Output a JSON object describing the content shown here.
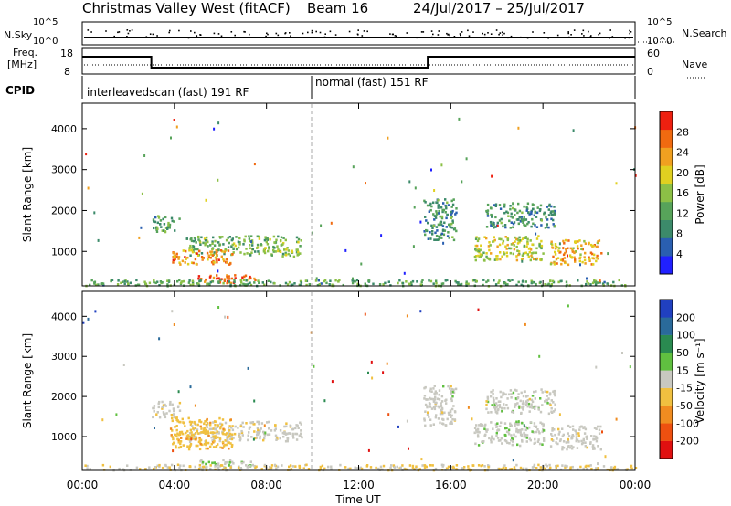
{
  "header": {
    "title": "Christmas Valley West (fitACF)",
    "beam": "Beam 16",
    "date_range": "24/Jul/2017 – 25/Jul/2017"
  },
  "top_panels": {
    "nsky_label": "N.Sky",
    "nsearch_label": "N.Search",
    "noise_ticks": [
      "10^5",
      "10^0"
    ],
    "freq_label_1": "Freq.",
    "freq_label_2": "[MHz]",
    "freq_ticks": [
      "18",
      "8"
    ],
    "nave_label": "Nave",
    "nave_ticks": [
      "60",
      "0"
    ],
    "cpid_label": "CPID",
    "cpid_segments": [
      "interleavedscan (fast) 191 RF",
      "normal (fast) 151 RF"
    ]
  },
  "colors": {
    "power": [
      "#2020ff",
      "#2a5fb0",
      "#3c8a6a",
      "#57a35a",
      "#8cc046",
      "#e0d020",
      "#f0a020",
      "#f06a10",
      "#ee2010"
    ],
    "velocity": [
      "#e01010",
      "#ee5010",
      "#f08c20",
      "#f0c040",
      "#c8c8c0",
      "#60c040",
      "#2a8a50",
      "#2a6a9a",
      "#2040c0"
    ]
  },
  "chart_data": [
    {
      "type": "heatmap",
      "name": "power",
      "title": "",
      "xlabel": "",
      "ylabel": "Slant Range [km]",
      "xlim": [
        "00:00",
        "24:00"
      ],
      "ylim": [
        180,
        4600
      ],
      "yticks": [
        "4000",
        "3000",
        "2000",
        "1000"
      ],
      "colorbar_label": "Power [dB]",
      "colorbar_ticks": [
        "28",
        "24",
        "20",
        "16",
        "12",
        "8",
        "4"
      ],
      "colorbar_range": [
        0,
        32
      ],
      "regions": [
        {
          "t0": 4.5,
          "t1": 9.5,
          "r0": 900,
          "r1": 1400,
          "value": 14
        },
        {
          "t0": 3.8,
          "t1": 6.5,
          "r0": 700,
          "r1": 1050,
          "value": 24
        },
        {
          "t0": 5.0,
          "t1": 7.5,
          "r0": 250,
          "r1": 450,
          "value": 26
        },
        {
          "t0": 0.0,
          "t1": 24.0,
          "r0": 180,
          "r1": 330,
          "value": 12
        },
        {
          "t0": 3.0,
          "t1": 4.2,
          "r0": 1500,
          "r1": 1900,
          "value": 12
        },
        {
          "t0": 14.8,
          "t1": 16.2,
          "r0": 1300,
          "r1": 2300,
          "value": 10
        },
        {
          "t0": 17.0,
          "t1": 20.0,
          "r0": 800,
          "r1": 1400,
          "value": 18
        },
        {
          "t0": 20.3,
          "t1": 22.5,
          "r0": 700,
          "r1": 1300,
          "value": 22
        },
        {
          "t0": 17.5,
          "t1": 20.5,
          "r0": 1600,
          "r1": 2200,
          "value": 10
        }
      ]
    },
    {
      "type": "heatmap",
      "name": "velocity",
      "title": "",
      "xlabel": "Time UT",
      "ylabel": "Slant Range [km]",
      "xlim": [
        "00:00",
        "24:00"
      ],
      "xticks": [
        "00:00",
        "04:00",
        "08:00",
        "12:00",
        "16:00",
        "20:00",
        "00:00"
      ],
      "ylim": [
        180,
        4600
      ],
      "yticks": [
        "4000",
        "3000",
        "2000",
        "1000"
      ],
      "colorbar_label": "Velocity [m s⁻¹]",
      "colorbar_ticks": [
        "200",
        "100",
        "50",
        "15",
        "-15",
        "-50",
        "-100",
        "-200"
      ],
      "colorbar_range": [
        -250,
        250
      ],
      "regions": [
        {
          "t0": 4.5,
          "t1": 9.5,
          "r0": 900,
          "r1": 1400,
          "value": -10
        },
        {
          "t0": 3.8,
          "t1": 6.5,
          "r0": 700,
          "r1": 1500,
          "value": -60
        },
        {
          "t0": 5.0,
          "t1": 7.5,
          "r0": 250,
          "r1": 450,
          "value": 20
        },
        {
          "t0": 0.0,
          "t1": 24.0,
          "r0": 180,
          "r1": 330,
          "value": -30
        },
        {
          "t0": 3.0,
          "t1": 4.2,
          "r0": 1500,
          "r1": 1900,
          "value": -5
        },
        {
          "t0": 14.8,
          "t1": 16.2,
          "r0": 1300,
          "r1": 2300,
          "value": 0
        },
        {
          "t0": 17.0,
          "t1": 20.0,
          "r0": 800,
          "r1": 1400,
          "value": 5
        },
        {
          "t0": 20.3,
          "t1": 22.5,
          "r0": 700,
          "r1": 1300,
          "value": 0
        },
        {
          "t0": 17.5,
          "t1": 20.5,
          "r0": 1600,
          "r1": 2200,
          "value": 0
        }
      ]
    }
  ]
}
